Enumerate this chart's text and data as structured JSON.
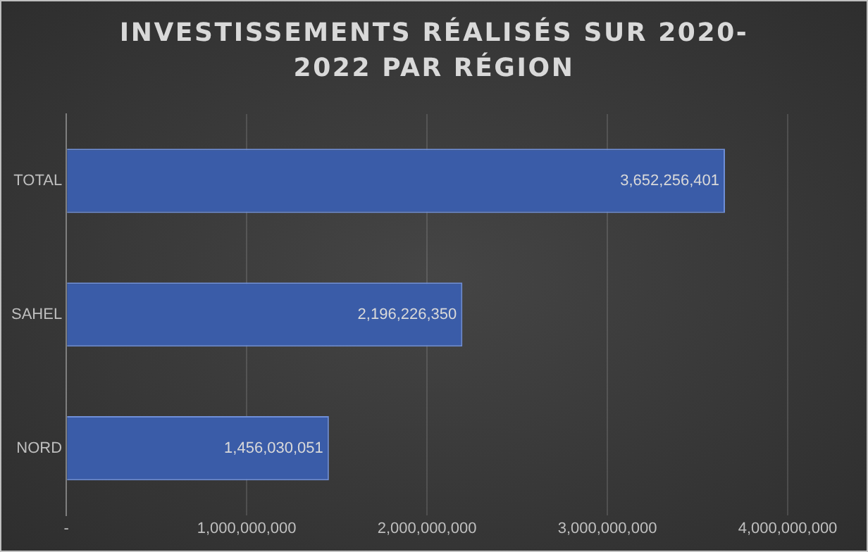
{
  "chart_data": {
    "type": "bar",
    "orientation": "horizontal",
    "title": "INVESTISSEMENTS RÉALISÉS SUR 2020-2022 PAR RÉGION",
    "categories": [
      "TOTAL",
      "SAHEL",
      "NORD"
    ],
    "values": [
      3652256401,
      2196226350,
      1456030051
    ],
    "color": "#3a5ca8",
    "xlim": [
      0,
      4000000000
    ],
    "xticks": [
      {
        "value": 0,
        "label": "-"
      },
      {
        "value": 1000000000,
        "label": "1,000,000,000"
      },
      {
        "value": 2000000000,
        "label": "2,000,000,000"
      },
      {
        "value": 3000000000,
        "label": "3,000,000,000"
      },
      {
        "value": 4000000000,
        "label": "4,000,000,000"
      }
    ],
    "value_labels": [
      "3,652,256,401",
      "2,196,226,350",
      "1,456,030,051"
    ],
    "grid": "x",
    "legend": false
  }
}
